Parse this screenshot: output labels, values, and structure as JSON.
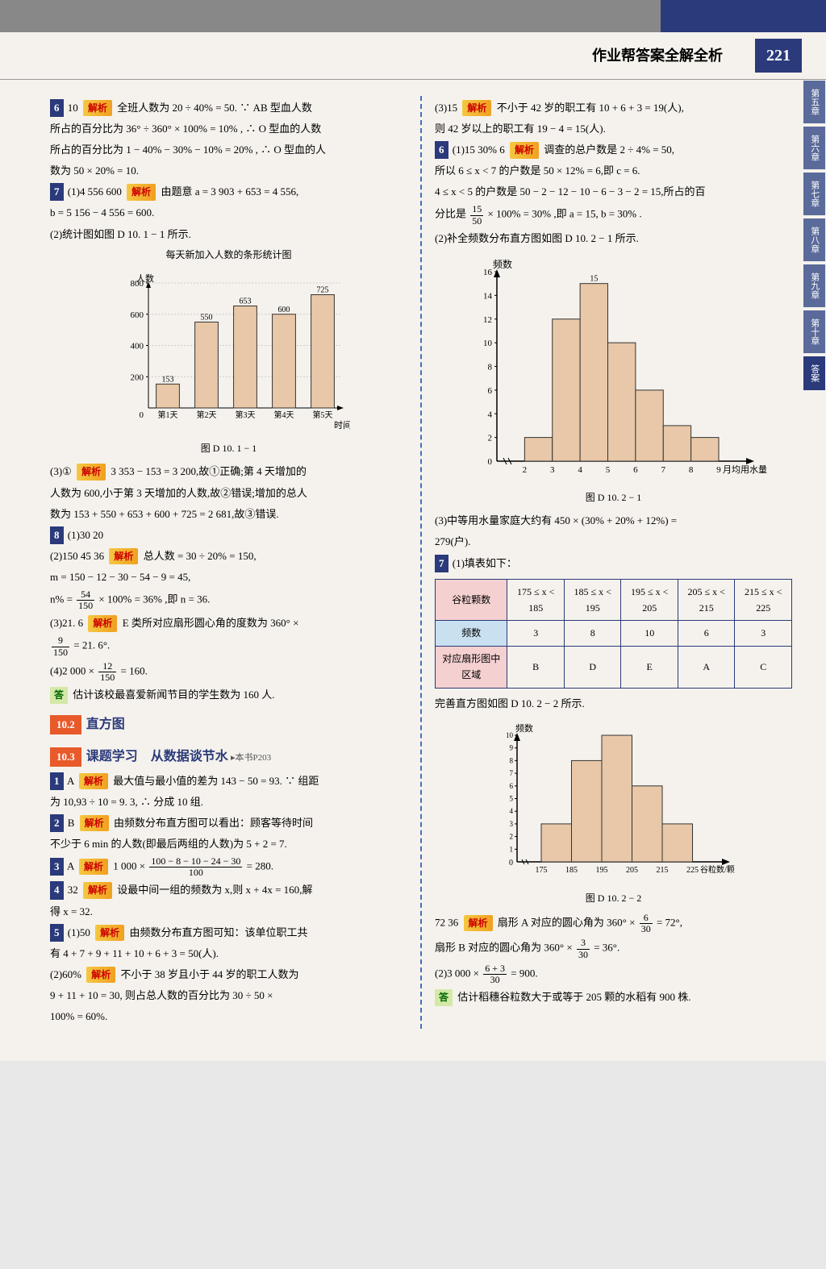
{
  "header": {
    "title": "作业帮答案全解全析",
    "page": "221"
  },
  "sidebar": [
    "第五章",
    "第六章",
    "第七章",
    "第八章",
    "第九章",
    "第十章",
    "答案"
  ],
  "left": {
    "q6": {
      "num": "6",
      "ans": "10",
      "jiexi": "解析",
      "text1": "全班人数为 20 ÷ 40% = 50. ∵ AB 型血人数",
      "text2": "所占的百分比为 36° ÷ 360° × 100% = 10% , ∴ O 型血的人数",
      "text3": "所占的百分比为 1 − 40% − 30% − 10% = 20% , ∴ O 型血的人",
      "text4": "数为 50 × 20% = 10."
    },
    "q7": {
      "num": "7",
      "sub": "(1)4 556  600",
      "jiexi": "解析",
      "t1": "由题意 a = 3 903 + 653 = 4 556,",
      "t2": "b = 5 156 − 4 556 = 600.",
      "t3": "(2)统计图如图 D 10. 1 − 1 所示."
    },
    "chart1": {
      "title": "每天新加入人数的条形统计图",
      "ylabel": "人数",
      "xlabel": "时间",
      "categories": [
        "第1天",
        "第2天",
        "第3天",
        "第4天",
        "第5天"
      ],
      "values": [
        153,
        550,
        653,
        600,
        725
      ],
      "labels": [
        "153",
        "550",
        "653",
        "600",
        "725"
      ],
      "ylim": [
        0,
        800
      ],
      "ytick": [
        200,
        400,
        600,
        800
      ],
      "bar_color": "#e8c8a8",
      "border": "#333",
      "bg": "#f5f2ed",
      "caption": "图 D 10. 1 − 1"
    },
    "q7_3": {
      "pre": "(3)①",
      "jiexi": "解析",
      "t1": "3 353 − 153 = 3 200,故①正确;第 4 天增加的",
      "t2": "人数为 600,小于第 3 天增加的人数,故②错误;增加的总人",
      "t3": "数为 153 + 550 + 653 + 600 + 725 = 2 681,故③错误."
    },
    "q8": {
      "num": "8",
      "s1": "(1)30  20",
      "s2": "(2)150  45  36",
      "jiexi": "解析",
      "t1": "总人数 = 30 ÷ 20% = 150,",
      "t2": "m = 150 − 12 − 30 − 54 − 9 = 45,",
      "frac_n": "54",
      "frac_d": "150",
      "t3": " × 100% = 36% ,即 n = 36.",
      "s3": "(3)21. 6",
      "jiexi2": "解析",
      "t4": "E 类所对应扇形圆心角的度数为 360° ×",
      "frac2_n": "9",
      "frac2_d": "150",
      "t5": " = 21. 6°.",
      "s4": "(4)2 000 × ",
      "frac3_n": "12",
      "frac3_d": "150",
      "t6": " = 160.",
      "da": "答",
      "t7": "估计该校最喜爱新闻节目的学生数为 160 人."
    },
    "section": {
      "n1": "10.2",
      "t1": "直方图",
      "n2": "10.3",
      "t2": "课题学习　从数据谈节水",
      "sub": "▸本书P203"
    },
    "q1": {
      "num": "1",
      "ans": "A",
      "jiexi": "解析",
      "t1": "最大值与最小值的差为 143 − 50 = 93. ∵ 组距",
      "t2": "为 10,93 ÷ 10 = 9. 3, ∴ 分成 10 组."
    },
    "q2": {
      "num": "2",
      "ans": "B",
      "jiexi": "解析",
      "t1": "由频数分布直方图可以看出：顾客等待时间",
      "t2": "不少于 6 min 的人数(即最后两组的人数)为 5 + 2 = 7."
    },
    "q3": {
      "num": "3",
      "ans": "A",
      "jiexi": "解析",
      "pre": "1 000 × ",
      "frac_n": "100 − 8 − 10 − 24 − 30",
      "frac_d": "100",
      "post": " = 280."
    },
    "q4": {
      "num": "4",
      "ans": "32",
      "jiexi": "解析",
      "t1": "设最中间一组的频数为 x,则 x + 4x = 160,解",
      "t2": "得 x = 32."
    },
    "q5": {
      "num": "5",
      "s1": "(1)50",
      "jiexi": "解析",
      "t1": "由频数分布直方图可知：该单位职工共",
      "t2": "有 4 + 7 + 9 + 11 + 10 + 6 + 3 = 50(人).",
      "s2": "(2)60%",
      "jiexi2": "解析",
      "t3": "不小于 38 岁且小于 44 岁的职工人数为",
      "t4": "9 + 11 + 10 = 30, 则占总人数的百分比为 30 ÷ 50 ×",
      "t5": "100% = 60%."
    }
  },
  "right": {
    "q5_3": {
      "pre": "(3)15",
      "jiexi": "解析",
      "t1": "不小于 42 岁的职工有 10 + 6 + 3 = 19(人),",
      "t2": "则 42 岁以上的职工有 19 − 4 = 15(人)."
    },
    "q6": {
      "num": "6",
      "s1": "(1)15  30%  6",
      "jiexi": "解析",
      "t1": "调查的总户数是 2 ÷ 4% = 50,",
      "t2": "所以 6 ≤ x < 7 的户数是 50 × 12% = 6,即 c = 6.",
      "t3": "4 ≤ x < 5 的户数是 50 − 2 − 12 − 10 − 6 − 3 − 2 = 15,所占的百",
      "pre": "分比是 ",
      "frac_n": "15",
      "frac_d": "50",
      "t4": " × 100% = 30% ,即 a = 15, b = 30% .",
      "t5": "(2)补全频数分布直方图如图 D 10. 2 − 1 所示."
    },
    "chart2": {
      "ylabel": "频数",
      "xlabel": "月均用水量/t",
      "categories": [
        "2",
        "3",
        "4",
        "5",
        "6",
        "7",
        "8",
        "9"
      ],
      "values": [
        2,
        12,
        15,
        10,
        6,
        3,
        2
      ],
      "value_labels": [
        "",
        "",
        "15",
        "",
        "",
        "",
        ""
      ],
      "ylim": [
        0,
        16
      ],
      "ytick": [
        2,
        4,
        6,
        8,
        10,
        12,
        14,
        16
      ],
      "bar_color": "#e8c8a8",
      "border": "#333",
      "caption": "图 D 10. 2 − 1"
    },
    "q6_3": {
      "t1": "(3)中等用水量家庭大约有 450 × (30% + 20% + 12%) =",
      "t2": "279(户)."
    },
    "q7": {
      "num": "7",
      "t1": "(1)填表如下："
    },
    "table": {
      "r1": [
        "谷粒颗数",
        "175 ≤ x < 185",
        "185 ≤ x < 195",
        "195 ≤ x < 205",
        "205 ≤ x < 215",
        "215 ≤ x < 225"
      ],
      "r2": [
        "频数",
        "3",
        "8",
        "10",
        "6",
        "3"
      ],
      "r3": [
        "对应扇形图中区域",
        "B",
        "D",
        "E",
        "A",
        "C"
      ]
    },
    "q7_t2": "完善直方图如图 D 10. 2 − 2 所示.",
    "chart3": {
      "ylabel": "频数",
      "xlabel": "谷粒数/颗",
      "xticks": [
        "175",
        "185",
        "195",
        "205",
        "215",
        "225"
      ],
      "values": [
        3,
        8,
        10,
        6,
        3
      ],
      "ylim": [
        0,
        10
      ],
      "ytick": [
        1,
        2,
        3,
        4,
        5,
        6,
        7,
        8,
        9,
        10
      ],
      "bar_color": "#e8c8a8",
      "border": "#333",
      "caption": "图 D 10. 2 − 2"
    },
    "q7_2": {
      "pre": "72  36",
      "jiexi": "解析",
      "t1": "扇形 A 对应的圆心角为 360° × ",
      "f1n": "6",
      "f1d": "30",
      "t1b": " = 72°,",
      "t2": "扇形 B 对应的圆心角为 360° × ",
      "f2n": "3",
      "f2d": "30",
      "t2b": " = 36°.",
      "t3": "(2)3 000 × ",
      "f3n": "6 + 3",
      "f3d": "30",
      "t3b": " = 900.",
      "da": "答",
      "t4": "估计稻穗谷粒数大于或等于 205 颗的水稻有 900 株."
    }
  }
}
